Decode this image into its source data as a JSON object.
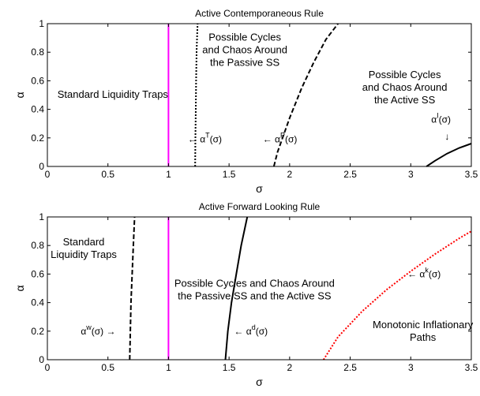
{
  "chart_data": [
    {
      "type": "line",
      "title": "Active Contemporaneous Rule",
      "xlabel": "σ",
      "ylabel": "α",
      "xlim": [
        0,
        3.5
      ],
      "ylim": [
        0,
        1
      ],
      "xticks": [
        0,
        0.5,
        1,
        1.5,
        2,
        2.5,
        3,
        3.5
      ],
      "yticks": [
        0,
        0.2,
        0.4,
        0.6,
        0.8,
        1
      ],
      "xtick_labels": [
        "0",
        "0.5",
        "1",
        "1.5",
        "2",
        "2.5",
        "3",
        "3.5"
      ],
      "ytick_labels": [
        "0",
        "0.2",
        "0.4",
        "0.6",
        "0.8",
        "1"
      ],
      "grid": false,
      "series": [
        {
          "color": "#ff00ff",
          "style": "solid",
          "x": [
            1,
            1
          ],
          "y": [
            0,
            1
          ]
        },
        {
          "color": "#000000",
          "style": "dotted",
          "x": [
            1.22,
            1.222,
            1.225,
            1.228,
            1.232,
            1.236,
            1.24
          ],
          "y": [
            0,
            0.2,
            0.4,
            0.6,
            0.8,
            0.9,
            1
          ]
        },
        {
          "color": "#000000",
          "style": "dashed",
          "x": [
            1.87,
            1.9,
            1.95,
            2.0,
            2.1,
            2.2,
            2.3,
            2.4
          ],
          "y": [
            0,
            0.1,
            0.22,
            0.34,
            0.55,
            0.73,
            0.89,
            1
          ]
        },
        {
          "color": "#000000",
          "style": "solid",
          "x": [
            3.13,
            3.2,
            3.3,
            3.4,
            3.5
          ],
          "y": [
            0,
            0.04,
            0.09,
            0.13,
            0.16
          ]
        }
      ],
      "annotations": [
        {
          "lines": [
            "Standard Liquidity Traps"
          ],
          "x": 0.54,
          "y": 0.48
        },
        {
          "lines": [
            "Possible Cycles",
            "and Chaos Around",
            "the Passive SS"
          ],
          "x": 1.63,
          "y": 0.88
        },
        {
          "lines": [
            "Possible Cycles",
            "and Chaos Around",
            "the Active SS"
          ],
          "x": 2.95,
          "y": 0.62
        },
        {
          "text": "← α",
          "sup": "T",
          "tail": "(σ)",
          "x": 1.3,
          "y": 0.19
        },
        {
          "text": "← α",
          "sup": "P",
          "tail": "(σ)",
          "x": 1.92,
          "y": 0.19
        },
        {
          "text": "α",
          "sup": "I",
          "tail": "(σ)",
          "x": 3.25,
          "y": 0.33
        },
        {
          "text": "↓",
          "x": 3.3,
          "y": 0.21
        }
      ]
    },
    {
      "type": "line",
      "title": "Active Forward Looking Rule",
      "xlabel": "σ",
      "ylabel": "α",
      "xlim": [
        0,
        3.5
      ],
      "ylim": [
        0,
        1
      ],
      "xticks": [
        0,
        0.5,
        1,
        1.5,
        2,
        2.5,
        3,
        3.5
      ],
      "yticks": [
        0,
        0.2,
        0.4,
        0.6,
        0.8,
        1
      ],
      "xtick_labels": [
        "0",
        "0.5",
        "1",
        "1.5",
        "2",
        "2.5",
        "3",
        "3.5"
      ],
      "ytick_labels": [
        "0",
        "0.2",
        "0.4",
        "0.6",
        "0.8",
        "1"
      ],
      "grid": false,
      "series": [
        {
          "color": "#ff00ff",
          "style": "solid",
          "x": [
            1,
            1
          ],
          "y": [
            0,
            1
          ]
        },
        {
          "color": "#000000",
          "style": "dashed",
          "x": [
            0.68,
            0.685,
            0.69,
            0.7,
            0.71,
            0.72
          ],
          "y": [
            0,
            0.2,
            0.4,
            0.6,
            0.8,
            1
          ]
        },
        {
          "color": "#000000",
          "style": "solid",
          "x": [
            1.47,
            1.49,
            1.52,
            1.56,
            1.6,
            1.65
          ],
          "y": [
            0,
            0.2,
            0.4,
            0.6,
            0.8,
            1
          ]
        },
        {
          "color": "#ff0000",
          "style": "dotted",
          "x": [
            2.28,
            2.4,
            2.6,
            2.8,
            3.0,
            3.2,
            3.4,
            3.5
          ],
          "y": [
            0,
            0.16,
            0.34,
            0.49,
            0.62,
            0.74,
            0.85,
            0.9
          ]
        }
      ],
      "annotations": [
        {
          "lines": [
            "Standard",
            "Liquidity Traps"
          ],
          "x": 0.3,
          "y": 0.8
        },
        {
          "lines": [
            "Possible Cycles and Chaos Around",
            "the Passive SS and the Active SS"
          ],
          "x": 1.71,
          "y": 0.51
        },
        {
          "lines": [
            "Monotonic Inflationary",
            "Paths"
          ],
          "x": 3.1,
          "y": 0.22
        },
        {
          "text": "α",
          "sup": "w",
          "tail": "(σ) →",
          "x": 0.42,
          "y": 0.2
        },
        {
          "text": "← α",
          "sup": "d",
          "tail": "(σ)",
          "x": 1.68,
          "y": 0.2
        },
        {
          "text": "← α",
          "sup": "k",
          "tail": "(σ)",
          "x": 3.11,
          "y": 0.6
        }
      ]
    }
  ]
}
